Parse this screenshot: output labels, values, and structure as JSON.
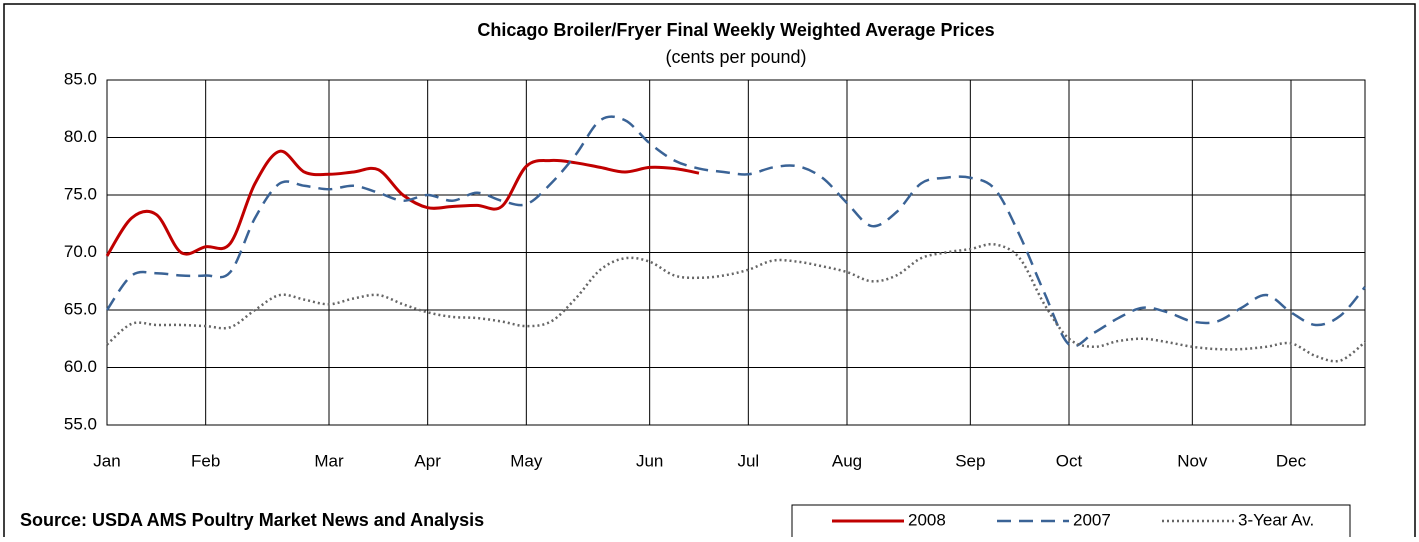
{
  "chart_data": {
    "type": "line",
    "title": "Chicago Broiler/Fryer Final Weekly Weighted Average Prices",
    "subtitle": "(cents per pound)",
    "source": "Source: USDA AMS Poultry Market News and Analysis",
    "categories": [
      "Jan",
      null,
      null,
      null,
      "Feb",
      null,
      null,
      null,
      null,
      "Mar",
      null,
      null,
      null,
      "Apr",
      null,
      null,
      null,
      "May",
      null,
      null,
      null,
      null,
      "Jun",
      null,
      null,
      null,
      "Jul",
      null,
      null,
      null,
      "Aug",
      null,
      null,
      null,
      null,
      "Sep",
      null,
      null,
      null,
      "Oct",
      null,
      null,
      null,
      null,
      "Nov",
      null,
      null,
      null,
      "Dec",
      null,
      null,
      null
    ],
    "series": [
      {
        "name": "2008",
        "color": "#c00000",
        "dash": "solid",
        "values": [
          69.7,
          73.0,
          73.3,
          70.0,
          70.5,
          70.8,
          76.0,
          78.8,
          77.0,
          76.8,
          77.0,
          77.2,
          75.0,
          73.9,
          74.0,
          74.1,
          74.0,
          77.5,
          78.0,
          77.8,
          77.4,
          77.0,
          77.4,
          77.3,
          76.9,
          null,
          null,
          null,
          null,
          null,
          null,
          null,
          null,
          null,
          null,
          null,
          null,
          null,
          null,
          null,
          null,
          null,
          null,
          null,
          null,
          null,
          null,
          null,
          null,
          null,
          null,
          null
        ]
      },
      {
        "name": "2007",
        "color": "#3a6396",
        "dash": "dashed",
        "values": [
          65.0,
          68.0,
          68.2,
          68.0,
          68.0,
          68.3,
          73.0,
          76.0,
          75.8,
          75.5,
          75.8,
          75.2,
          74.5,
          75.0,
          74.5,
          75.2,
          74.5,
          74.2,
          76.0,
          78.5,
          81.5,
          81.5,
          79.5,
          78.0,
          77.3,
          77.0,
          76.8,
          77.4,
          77.5,
          76.5,
          74.3,
          72.3,
          73.5,
          76.0,
          76.5,
          76.5,
          75.5,
          71.5,
          66.5,
          62.0,
          63.0,
          64.3,
          65.2,
          64.8,
          64.0,
          64.0,
          65.2,
          66.3,
          64.8,
          63.7,
          64.5,
          67.0
        ]
      },
      {
        "name": "3-Year Av.",
        "color": "#666666",
        "dash": "dotted",
        "values": [
          62.0,
          63.8,
          63.7,
          63.7,
          63.6,
          63.5,
          65.0,
          66.3,
          65.9,
          65.5,
          66.0,
          66.3,
          65.5,
          64.8,
          64.4,
          64.3,
          64.0,
          63.6,
          64.0,
          66.0,
          68.5,
          69.5,
          69.2,
          68.0,
          67.8,
          68.0,
          68.5,
          69.3,
          69.2,
          68.8,
          68.3,
          67.5,
          68.0,
          69.5,
          70.0,
          70.3,
          70.7,
          69.5,
          65.5,
          62.5,
          61.8,
          62.3,
          62.5,
          62.2,
          61.8,
          61.6,
          61.6,
          61.8,
          62.1,
          61.0,
          60.6,
          62.2
        ]
      }
    ],
    "ylim": [
      55,
      85
    ],
    "yticks": [
      {
        "value": 55,
        "label": "55.0"
      },
      {
        "value": 60,
        "label": "60.0"
      },
      {
        "value": 65,
        "label": "65.0"
      },
      {
        "value": 70,
        "label": "70.0"
      },
      {
        "value": 75,
        "label": "75.0"
      },
      {
        "value": 80,
        "label": "80.0"
      },
      {
        "value": 85,
        "label": "85.0"
      }
    ],
    "grid": true,
    "legend": "bottom-right"
  }
}
